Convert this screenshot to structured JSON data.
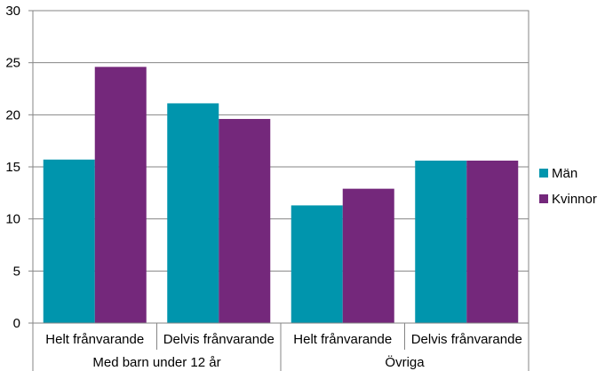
{
  "chart_data": {
    "type": "bar",
    "title": "",
    "xlabel": "",
    "ylabel": "",
    "ylim": [
      0,
      30
    ],
    "yticks": [
      0,
      5,
      10,
      15,
      20,
      25,
      30
    ],
    "grid": true,
    "legend_position": "right",
    "categories": [
      "Helt frånvarande",
      "Delvis frånvarande",
      "Helt frånvarande",
      "Delvis frånvarande"
    ],
    "groups": [
      {
        "label": "Med barn under 12 år",
        "categories": [
          0,
          1
        ]
      },
      {
        "label": "Övriga",
        "categories": [
          2,
          3
        ]
      }
    ],
    "series": [
      {
        "name": "Män",
        "color": "#0095AD",
        "values": [
          15.7,
          21.1,
          11.3,
          15.6
        ]
      },
      {
        "name": "Kvinnor",
        "color": "#74287B",
        "values": [
          24.6,
          19.6,
          12.9,
          15.6
        ]
      }
    ]
  }
}
